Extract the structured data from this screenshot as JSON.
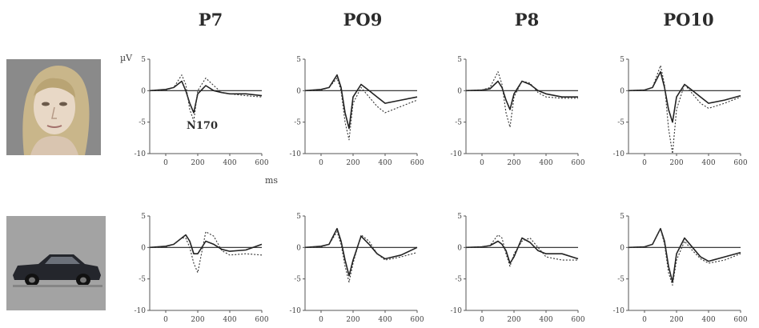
{
  "column_titles": [
    "P7",
    "PO9",
    "P8",
    "PO10"
  ],
  "y_unit_label": "µV",
  "x_unit_label": "ms",
  "annotation": "N170",
  "colors": {
    "solid": "#222222",
    "dotted": "#333333",
    "axis": "#555555"
  },
  "chart_data": [
    {
      "type": "line",
      "title": "P7",
      "stimulus": "face",
      "xlim": [
        -100,
        600
      ],
      "ylim": [
        -10,
        5
      ],
      "xticks": [
        0,
        200,
        400,
        600
      ],
      "yticks": [
        5,
        0,
        -5,
        -10
      ],
      "series": [
        {
          "style": "solid",
          "x": [
            -100,
            0,
            50,
            100,
            125,
            150,
            175,
            200,
            250,
            300,
            350,
            400,
            500,
            600
          ],
          "y": [
            0,
            0.2,
            0.5,
            1.5,
            0,
            -2,
            -3.5,
            -0.5,
            0.8,
            0,
            -0.3,
            -0.5,
            -0.5,
            -0.8
          ]
        },
        {
          "style": "dotted",
          "x": [
            -100,
            0,
            50,
            100,
            125,
            150,
            175,
            200,
            250,
            300,
            350,
            400,
            500,
            600
          ],
          "y": [
            0,
            0.1,
            0.5,
            2.5,
            1,
            -3,
            -4.8,
            0,
            2,
            0.8,
            -0.3,
            -0.5,
            -0.8,
            -1
          ]
        }
      ]
    },
    {
      "type": "line",
      "title": "PO9",
      "stimulus": "face",
      "xlim": [
        -100,
        600
      ],
      "ylim": [
        -10,
        5
      ],
      "xticks": [
        0,
        200,
        400,
        600
      ],
      "yticks": [
        5,
        0,
        -5,
        -10
      ],
      "series": [
        {
          "style": "solid",
          "x": [
            -100,
            0,
            50,
            100,
            125,
            150,
            175,
            200,
            250,
            300,
            350,
            400,
            500,
            600
          ],
          "y": [
            0,
            0.2,
            0.5,
            2.5,
            0.5,
            -3.5,
            -6,
            -1,
            1,
            0,
            -1,
            -2,
            -1.5,
            -1
          ]
        },
        {
          "style": "dotted",
          "x": [
            -100,
            0,
            50,
            100,
            125,
            150,
            175,
            200,
            250,
            300,
            350,
            400,
            500,
            600
          ],
          "y": [
            0,
            0.1,
            0.5,
            2,
            0,
            -5,
            -7.8,
            -2,
            0.5,
            -1,
            -2.5,
            -3.5,
            -2.5,
            -1.5
          ]
        }
      ]
    },
    {
      "type": "line",
      "title": "P8",
      "stimulus": "face",
      "xlim": [
        -100,
        600
      ],
      "ylim": [
        -10,
        5
      ],
      "xticks": [
        0,
        200,
        400,
        600
      ],
      "yticks": [
        5,
        0,
        -5,
        -10
      ],
      "series": [
        {
          "style": "solid",
          "x": [
            -100,
            0,
            50,
            100,
            125,
            150,
            175,
            200,
            250,
            300,
            350,
            400,
            500,
            600
          ],
          "y": [
            0,
            0.1,
            0.3,
            1.5,
            0.5,
            -1.5,
            -3,
            -0.5,
            1.5,
            1,
            0,
            -0.5,
            -1,
            -1
          ]
        },
        {
          "style": "dotted",
          "x": [
            -100,
            0,
            50,
            100,
            125,
            150,
            175,
            200,
            250,
            300,
            350,
            400,
            500,
            600
          ],
          "y": [
            0,
            0.1,
            0.5,
            3,
            1,
            -3.5,
            -5.8,
            -1,
            1.5,
            1.2,
            -0.3,
            -1,
            -1.2,
            -1.2
          ]
        }
      ]
    },
    {
      "type": "line",
      "title": "PO10",
      "stimulus": "face",
      "xlim": [
        -100,
        600
      ],
      "ylim": [
        -10,
        5
      ],
      "xticks": [
        0,
        200,
        400,
        600
      ],
      "yticks": [
        5,
        0,
        -5,
        -10
      ],
      "series": [
        {
          "style": "solid",
          "x": [
            -100,
            0,
            50,
            100,
            125,
            150,
            175,
            200,
            250,
            300,
            350,
            400,
            500,
            600
          ],
          "y": [
            0,
            0.1,
            0.5,
            3,
            0.5,
            -3,
            -5,
            -1,
            1,
            0,
            -1,
            -2,
            -1.5,
            -0.8
          ]
        },
        {
          "style": "dotted",
          "x": [
            -100,
            0,
            50,
            100,
            125,
            150,
            175,
            200,
            250,
            300,
            350,
            400,
            500,
            600
          ],
          "y": [
            0,
            0.1,
            0.5,
            4,
            1,
            -6,
            -10,
            -3,
            1,
            -0.5,
            -2,
            -2.8,
            -2,
            -1
          ]
        }
      ]
    },
    {
      "type": "line",
      "title": "P7",
      "stimulus": "car",
      "xlim": [
        -100,
        600
      ],
      "ylim": [
        -10,
        5
      ],
      "xticks": [
        0,
        200,
        400,
        600
      ],
      "yticks": [
        5,
        0,
        -5,
        -10
      ],
      "series": [
        {
          "style": "solid",
          "x": [
            -100,
            0,
            50,
            100,
            125,
            150,
            175,
            200,
            250,
            300,
            350,
            400,
            500,
            600
          ],
          "y": [
            0,
            0.2,
            0.5,
            1.5,
            2,
            1,
            -1,
            -1,
            1,
            0.5,
            -0.3,
            -0.6,
            -0.4,
            0.5
          ]
        },
        {
          "style": "dotted",
          "x": [
            -100,
            0,
            50,
            100,
            125,
            150,
            175,
            200,
            250,
            300,
            350,
            400,
            500,
            600
          ],
          "y": [
            0,
            0.1,
            0.5,
            1.5,
            1.5,
            0,
            -2.5,
            -4,
            2.5,
            1.8,
            -0.5,
            -1.2,
            -1,
            -1.2
          ]
        }
      ]
    },
    {
      "type": "line",
      "title": "PO9",
      "stimulus": "car",
      "xlim": [
        -100,
        600
      ],
      "ylim": [
        -10,
        5
      ],
      "xticks": [
        0,
        200,
        400,
        600
      ],
      "yticks": [
        5,
        0,
        -5,
        -10
      ],
      "series": [
        {
          "style": "solid",
          "x": [
            -100,
            0,
            50,
            100,
            125,
            150,
            175,
            200,
            250,
            300,
            350,
            400,
            500,
            600
          ],
          "y": [
            0,
            0.2,
            0.5,
            3,
            1,
            -2,
            -4.5,
            -2,
            1.8,
            0.5,
            -1,
            -1.8,
            -1.2,
            0
          ]
        },
        {
          "style": "dotted",
          "x": [
            -100,
            0,
            50,
            100,
            125,
            150,
            175,
            200,
            250,
            300,
            350,
            400,
            500,
            600
          ],
          "y": [
            0,
            0.1,
            0.5,
            2.5,
            0.5,
            -3,
            -5.5,
            -2.5,
            2,
            1,
            -1,
            -2,
            -1.5,
            -0.8
          ]
        }
      ]
    },
    {
      "type": "line",
      "title": "P8",
      "stimulus": "car",
      "xlim": [
        -100,
        600
      ],
      "ylim": [
        -10,
        5
      ],
      "xticks": [
        0,
        200,
        400,
        600
      ],
      "yticks": [
        5,
        0,
        -5,
        -10
      ],
      "series": [
        {
          "style": "solid",
          "x": [
            -100,
            0,
            50,
            100,
            125,
            150,
            175,
            200,
            250,
            300,
            350,
            400,
            500,
            600
          ],
          "y": [
            0,
            0.1,
            0.3,
            1,
            0.5,
            -0.5,
            -2.5,
            -1.5,
            1.5,
            0.8,
            -0.5,
            -1,
            -1,
            -1.8
          ]
        },
        {
          "style": "dotted",
          "x": [
            -100,
            0,
            50,
            100,
            125,
            150,
            175,
            200,
            250,
            300,
            350,
            400,
            500,
            600
          ],
          "y": [
            0,
            0.1,
            0.3,
            2,
            1.5,
            -1,
            -3,
            -1,
            1,
            1.5,
            0,
            -1.5,
            -2,
            -2
          ]
        }
      ]
    },
    {
      "type": "line",
      "title": "PO10",
      "stimulus": "car",
      "xlim": [
        -100,
        600
      ],
      "ylim": [
        -10,
        5
      ],
      "xticks": [
        0,
        200,
        400,
        600
      ],
      "yticks": [
        5,
        0,
        -5,
        -10
      ],
      "series": [
        {
          "style": "solid",
          "x": [
            -100,
            0,
            50,
            100,
            125,
            150,
            175,
            200,
            250,
            300,
            350,
            400,
            500,
            600
          ],
          "y": [
            0,
            0.1,
            0.5,
            3,
            1,
            -3,
            -5.5,
            -1,
            1.5,
            0,
            -1.5,
            -2.2,
            -1.5,
            -0.8
          ]
        },
        {
          "style": "dotted",
          "x": [
            -100,
            0,
            50,
            100,
            125,
            150,
            175,
            200,
            250,
            300,
            350,
            400,
            500,
            600
          ],
          "y": [
            0,
            0.1,
            0.5,
            3,
            0.5,
            -4,
            -6,
            -2,
            1,
            -0.5,
            -1.8,
            -2.5,
            -2,
            -1
          ]
        }
      ]
    }
  ]
}
